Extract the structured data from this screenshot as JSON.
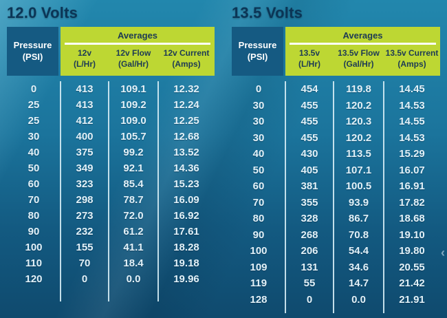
{
  "colors": {
    "background_top": "#2287ad",
    "background_bottom": "#0f4a6e",
    "header_green": "#bdd733",
    "pressure_box_blue": "#155a82",
    "title_navy": "#0b3556",
    "data_text": "#e2f1f8",
    "divider": "#d3eaf3"
  },
  "icons": {
    "chevron_left": "‹"
  },
  "tables": [
    {
      "title": "12.0 Volts",
      "pressure_header": {
        "line1": "Pressure",
        "line2": "(PSI)"
      },
      "averages_label": "Averages",
      "columns": [
        {
          "line1": "12v",
          "line2": "(L/Hr)"
        },
        {
          "line1": "12v Flow",
          "line2": "(Gal/Hr)"
        },
        {
          "line1": "12v Current",
          "line2": "(Amps)"
        }
      ],
      "rows": [
        [
          "0",
          "413",
          "109.1",
          "12.32"
        ],
        [
          "25",
          "413",
          "109.2",
          "12.24"
        ],
        [
          "25",
          "412",
          "109.0",
          "12.25"
        ],
        [
          "30",
          "400",
          "105.7",
          "12.68"
        ],
        [
          "40",
          "375",
          "99.2",
          "13.52"
        ],
        [
          "50",
          "349",
          "92.1",
          "14.36"
        ],
        [
          "60",
          "323",
          "85.4",
          "15.23"
        ],
        [
          "70",
          "298",
          "78.7",
          "16.09"
        ],
        [
          "80",
          "273",
          "72.0",
          "16.92"
        ],
        [
          "90",
          "232",
          "61.2",
          "17.61"
        ],
        [
          "100",
          "155",
          "41.1",
          "18.28"
        ],
        [
          "110",
          "70",
          "18.4",
          "19.18"
        ],
        [
          "120",
          "0",
          "0.0",
          "19.96"
        ]
      ]
    },
    {
      "title": "13.5 Volts",
      "pressure_header": {
        "line1": "Pressure",
        "line2": "(PSI)"
      },
      "averages_label": "Averages",
      "columns": [
        {
          "line1": "13.5v",
          "line2": "(L/Hr)"
        },
        {
          "line1": "13.5v Flow",
          "line2": "(Gal/Hr)"
        },
        {
          "line1": "13.5v Current",
          "line2": "(Amps)"
        }
      ],
      "rows": [
        [
          "0",
          "454",
          "119.8",
          "14.45"
        ],
        [
          "30",
          "455",
          "120.2",
          "14.53"
        ],
        [
          "30",
          "455",
          "120.3",
          "14.55"
        ],
        [
          "30",
          "455",
          "120.2",
          "14.53"
        ],
        [
          "40",
          "430",
          "113.5",
          "15.29"
        ],
        [
          "50",
          "405",
          "107.1",
          "16.07"
        ],
        [
          "60",
          "381",
          "100.5",
          "16.91"
        ],
        [
          "70",
          "355",
          "93.9",
          "17.82"
        ],
        [
          "80",
          "328",
          "86.7",
          "18.68"
        ],
        [
          "90",
          "268",
          "70.8",
          "19.10"
        ],
        [
          "100",
          "206",
          "54.4",
          "19.80"
        ],
        [
          "109",
          "131",
          "34.6",
          "20.55"
        ],
        [
          "119",
          "55",
          "14.7",
          "21.42"
        ],
        [
          "128",
          "0",
          "0.0",
          "21.91"
        ]
      ]
    }
  ],
  "chart_data": [
    {
      "type": "table",
      "title": "12.0 Volts",
      "columns": [
        "Pressure (PSI)",
        "12v (L/Hr)",
        "12v Flow (Gal/Hr)",
        "12v Current (Amps)"
      ],
      "header_group": "Averages",
      "rows": [
        [
          0,
          413,
          109.1,
          12.32
        ],
        [
          25,
          413,
          109.2,
          12.24
        ],
        [
          25,
          412,
          109.0,
          12.25
        ],
        [
          30,
          400,
          105.7,
          12.68
        ],
        [
          40,
          375,
          99.2,
          13.52
        ],
        [
          50,
          349,
          92.1,
          14.36
        ],
        [
          60,
          323,
          85.4,
          15.23
        ],
        [
          70,
          298,
          78.7,
          16.09
        ],
        [
          80,
          273,
          72.0,
          16.92
        ],
        [
          90,
          232,
          61.2,
          17.61
        ],
        [
          100,
          155,
          41.1,
          18.28
        ],
        [
          110,
          70,
          18.4,
          19.18
        ],
        [
          120,
          0,
          0.0,
          19.96
        ]
      ]
    },
    {
      "type": "table",
      "title": "13.5 Volts",
      "columns": [
        "Pressure (PSI)",
        "13.5v (L/Hr)",
        "13.5v Flow (Gal/Hr)",
        "13.5v Current (Amps)"
      ],
      "header_group": "Averages",
      "rows": [
        [
          0,
          454,
          119.8,
          14.45
        ],
        [
          30,
          455,
          120.2,
          14.53
        ],
        [
          30,
          455,
          120.3,
          14.55
        ],
        [
          30,
          455,
          120.2,
          14.53
        ],
        [
          40,
          430,
          113.5,
          15.29
        ],
        [
          50,
          405,
          107.1,
          16.07
        ],
        [
          60,
          381,
          100.5,
          16.91
        ],
        [
          70,
          355,
          93.9,
          17.82
        ],
        [
          80,
          328,
          86.7,
          18.68
        ],
        [
          90,
          268,
          70.8,
          19.1
        ],
        [
          100,
          206,
          54.4,
          19.8
        ],
        [
          109,
          131,
          34.6,
          20.55
        ],
        [
          119,
          55,
          14.7,
          21.42
        ],
        [
          128,
          0,
          0.0,
          21.91
        ]
      ]
    }
  ]
}
